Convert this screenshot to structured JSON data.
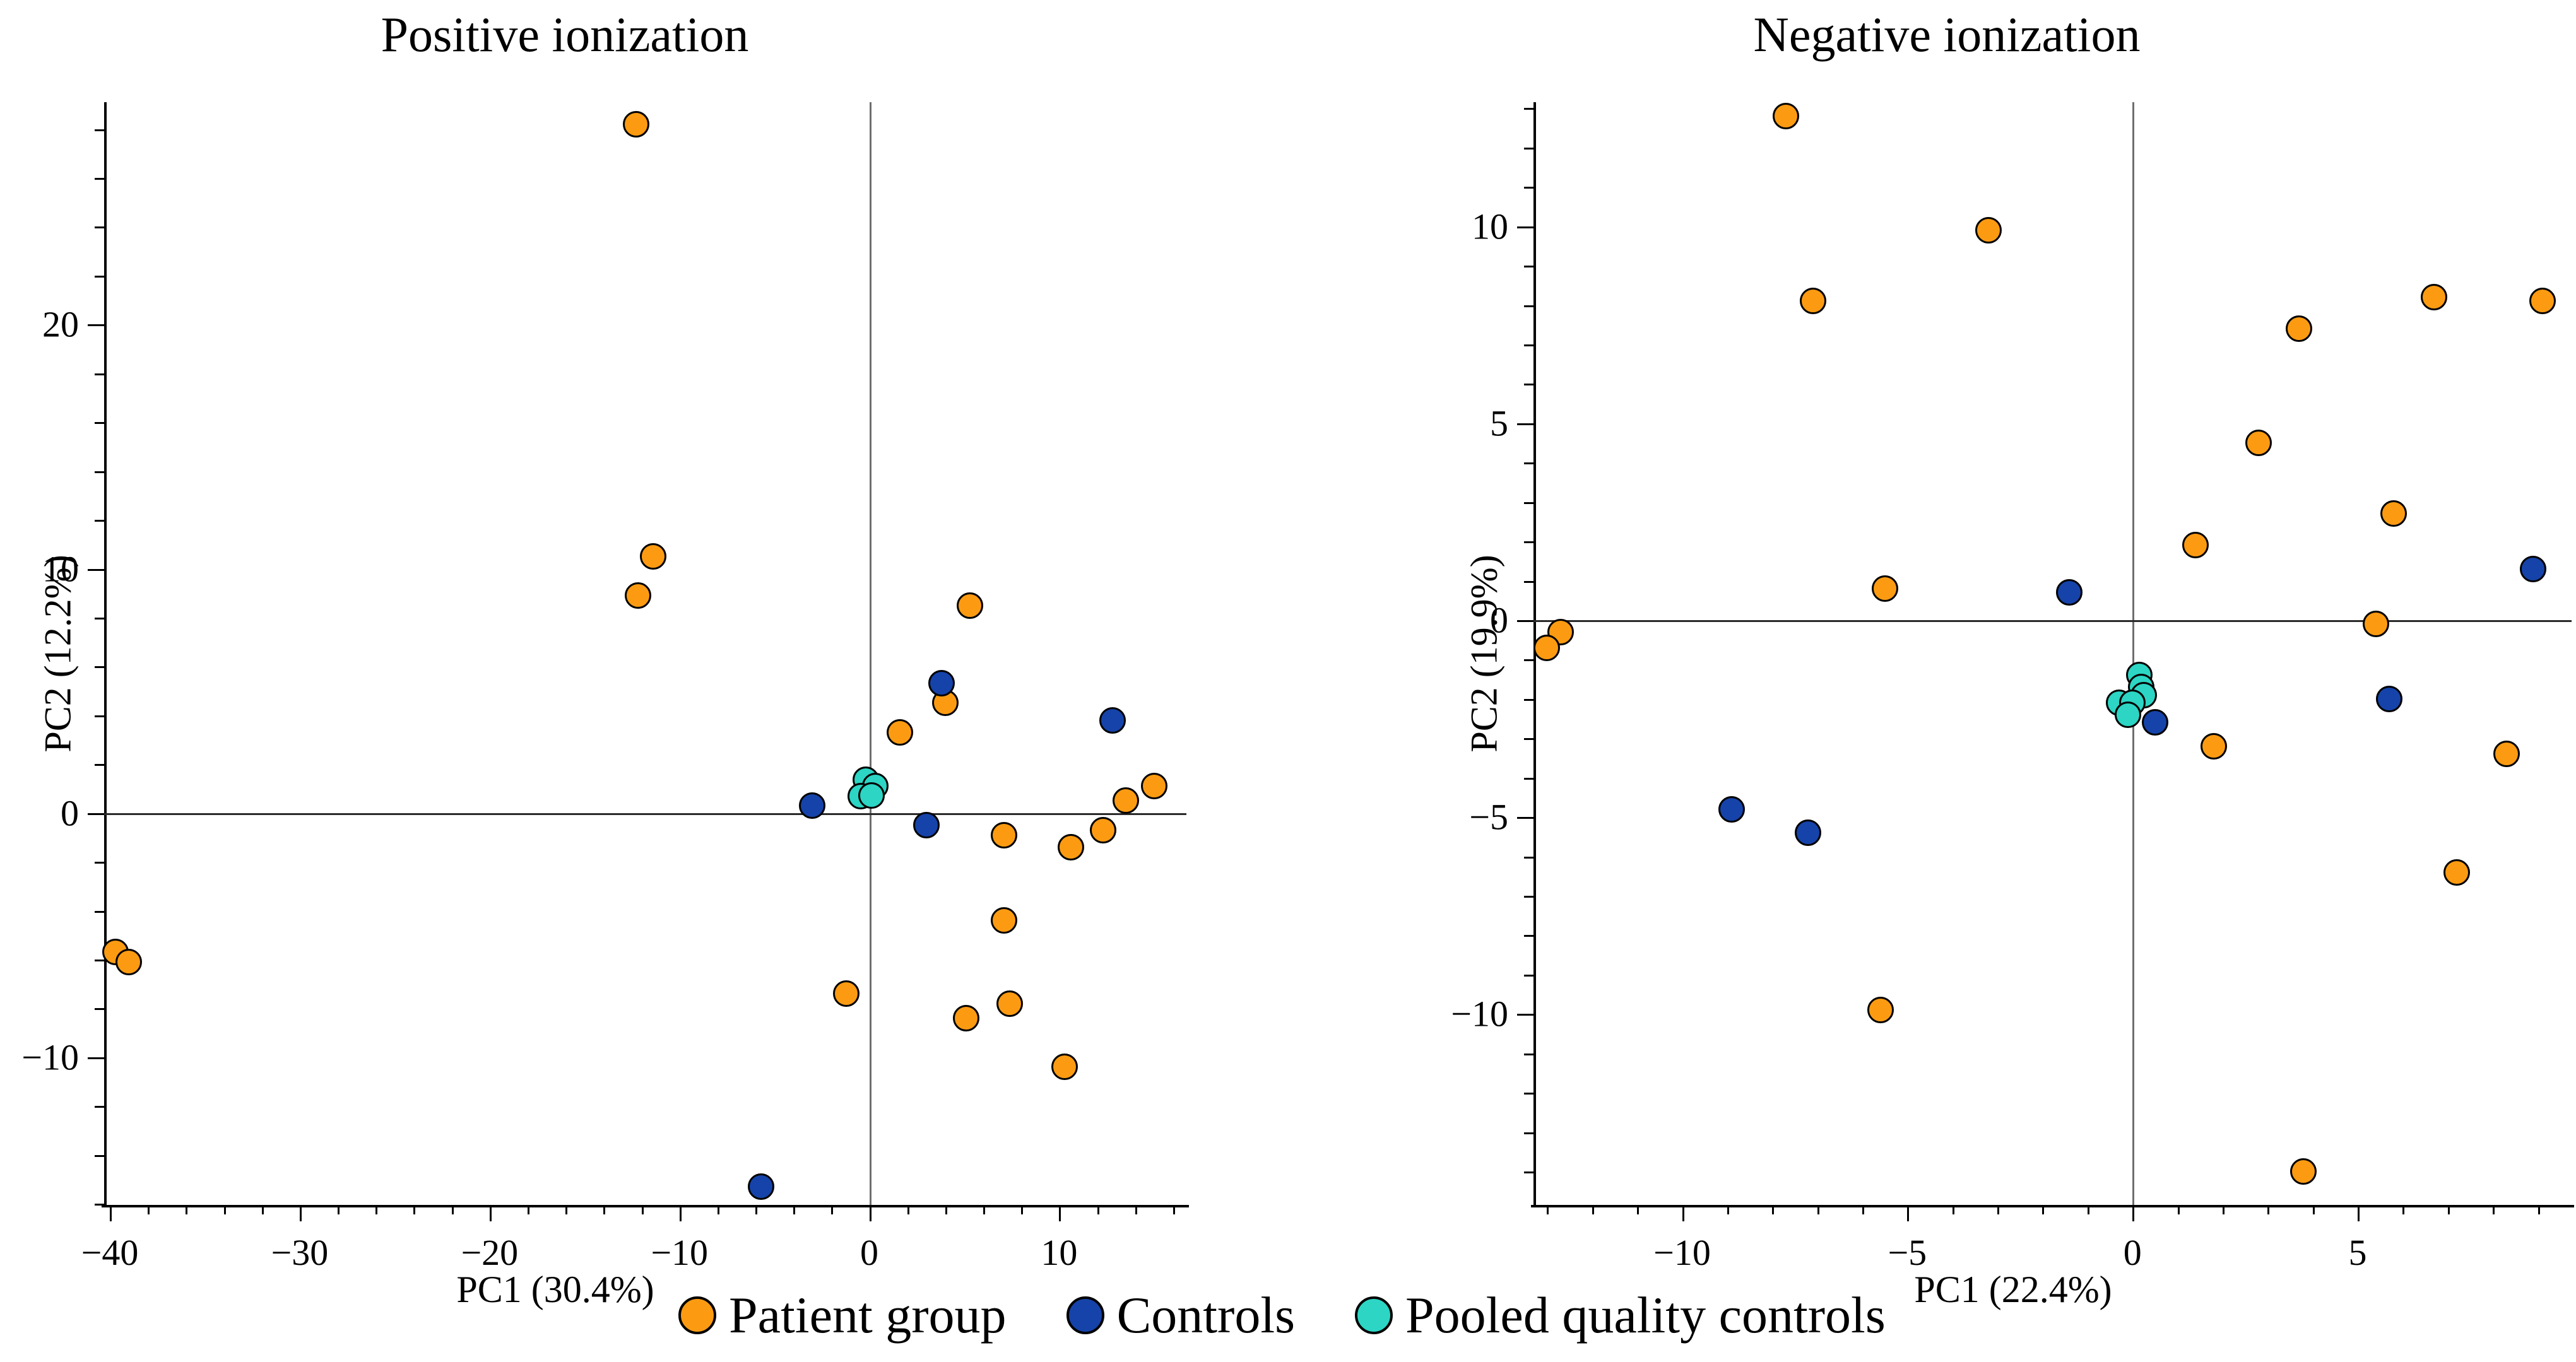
{
  "figure": {
    "background": "#ffffff"
  },
  "colors": {
    "patient": "#FC9B12",
    "controls": "#1543A9",
    "pooled_qc": "#2CD5C4",
    "zero_line_vertical": "#6e6e6e",
    "zero_line_horizontal": "#2a2a2a",
    "spine": "#000000"
  },
  "legend": {
    "items": [
      {
        "label": "Patient group",
        "color": "#FC9B12",
        "marker": "circle-icon"
      },
      {
        "label": "Controls",
        "color": "#1543A9",
        "marker": "circle-icon"
      },
      {
        "label": "Pooled quality controls",
        "color": "#2CD5C4",
        "marker": "circle-icon"
      }
    ]
  },
  "chart_data": [
    {
      "type": "scatter",
      "title": "Positive ionization",
      "xlabel": "PC1 (30.4%)",
      "ylabel": "PC2 (12.2%)",
      "xlim": [
        -40.3,
        16.7
      ],
      "ylim": [
        -16.05,
        29.1
      ],
      "xticks": [
        -40,
        -30,
        -20,
        -10,
        0,
        10
      ],
      "yticks": [
        -10,
        0,
        10,
        20
      ],
      "x_minor_step": 2,
      "y_minor_step": 2,
      "grid": false,
      "zero_lines": true,
      "series": [
        {
          "name": "Patient group",
          "color": "#FC9B12",
          "points": [
            [
              -12.3,
              28.2
            ],
            [
              -11.4,
              10.5
            ],
            [
              -12.2,
              8.9
            ],
            [
              5.3,
              8.5
            ],
            [
              4.0,
              4.5
            ],
            [
              1.6,
              3.3
            ],
            [
              13.5,
              0.5
            ],
            [
              15.0,
              1.1
            ],
            [
              7.1,
              -0.9
            ],
            [
              10.6,
              -1.4
            ],
            [
              12.3,
              -0.7
            ],
            [
              7.1,
              -4.4
            ],
            [
              -39.7,
              -5.7
            ],
            [
              -39.0,
              -6.1
            ],
            [
              -1.2,
              -7.4
            ],
            [
              5.1,
              -8.4
            ],
            [
              7.4,
              -7.8
            ],
            [
              10.3,
              -10.4
            ]
          ]
        },
        {
          "name": "Controls",
          "color": "#1543A9",
          "points": [
            [
              3.8,
              5.3
            ],
            [
              12.8,
              3.8
            ],
            [
              -3.0,
              0.3
            ],
            [
              3.0,
              -0.5
            ],
            [
              -5.7,
              -15.3
            ]
          ]
        },
        {
          "name": "Pooled quality controls",
          "color": "#2CD5C4",
          "points": [
            [
              -0.2,
              1.35
            ],
            [
              0.3,
              1.1
            ],
            [
              -0.45,
              0.7
            ],
            [
              0.1,
              0.72
            ]
          ]
        }
      ]
    },
    {
      "type": "scatter",
      "title": "Negative ionization",
      "xlabel": "PC1 (22.4%)",
      "ylabel": "PC2 (19.9%)",
      "xlim": [
        -13.3,
        9.75
      ],
      "ylim": [
        -14.85,
        13.15
      ],
      "xticks": [
        -10,
        -5,
        0,
        5
      ],
      "yticks": [
        -10,
        -5,
        0,
        5,
        10
      ],
      "x_minor_step": 1,
      "y_minor_step": 1,
      "grid": false,
      "zero_lines": true,
      "series": [
        {
          "name": "Patient group",
          "color": "#FC9B12",
          "points": [
            [
              -7.7,
              12.8
            ],
            [
              -3.2,
              9.9
            ],
            [
              -7.1,
              8.1
            ],
            [
              3.7,
              7.4
            ],
            [
              6.7,
              8.2
            ],
            [
              9.1,
              8.1
            ],
            [
              2.8,
              4.5
            ],
            [
              5.8,
              2.7
            ],
            [
              1.4,
              1.9
            ],
            [
              -5.5,
              0.8
            ],
            [
              5.4,
              -0.1
            ],
            [
              -12.7,
              -0.3
            ],
            [
              -13.0,
              -0.7
            ],
            [
              1.8,
              -3.2
            ],
            [
              8.3,
              -3.4
            ],
            [
              7.2,
              -6.4
            ],
            [
              -5.6,
              -9.9
            ],
            [
              3.8,
              -14.0
            ]
          ]
        },
        {
          "name": "Controls",
          "color": "#1543A9",
          "points": [
            [
              -1.4,
              0.7
            ],
            [
              8.9,
              1.3
            ],
            [
              0.5,
              -2.6
            ],
            [
              5.7,
              -2.0
            ],
            [
              -8.9,
              -4.8
            ],
            [
              -7.2,
              -5.4
            ]
          ]
        },
        {
          "name": "Pooled quality controls",
          "color": "#2CD5C4",
          "points": [
            [
              0.15,
              -1.4
            ],
            [
              0.2,
              -1.7
            ],
            [
              0.25,
              -1.9
            ],
            [
              -0.3,
              -2.1
            ],
            [
              0.0,
              -2.1
            ],
            [
              -0.1,
              -2.4
            ]
          ]
        }
      ]
    }
  ]
}
